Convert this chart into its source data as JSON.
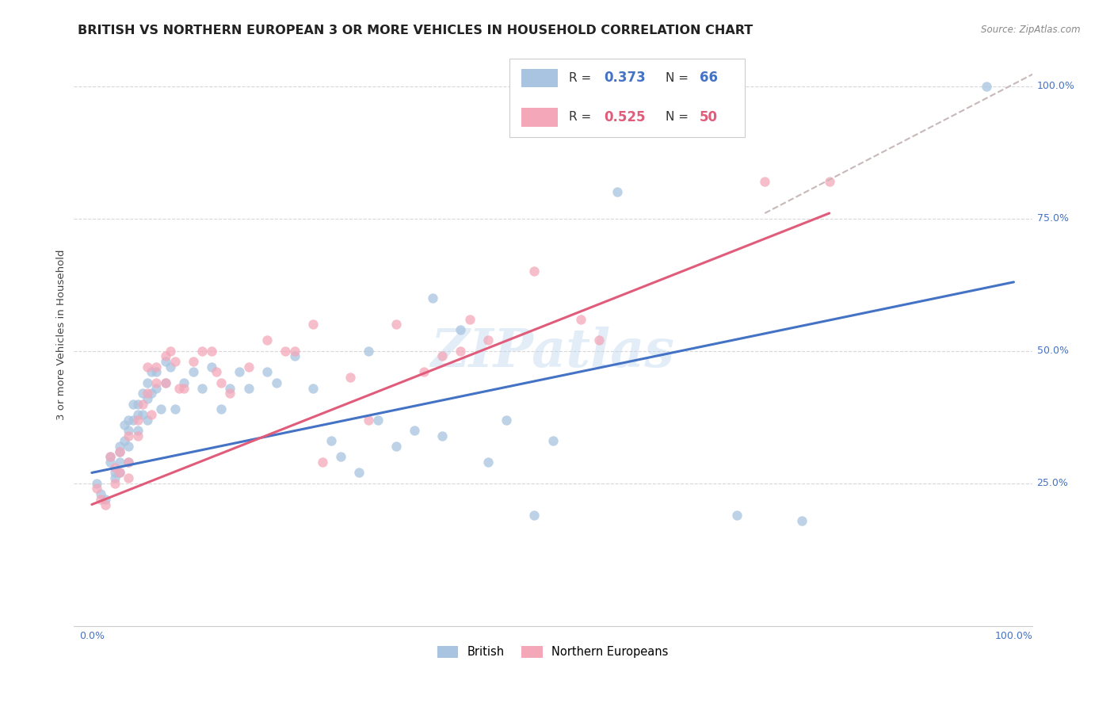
{
  "title": "BRITISH VS NORTHERN EUROPEAN 3 OR MORE VEHICLES IN HOUSEHOLD CORRELATION CHART",
  "source": "Source: ZipAtlas.com",
  "ylabel": "3 or more Vehicles in Household",
  "xlim": [
    -0.02,
    1.02
  ],
  "ylim": [
    -0.02,
    1.08
  ],
  "british_R": 0.373,
  "british_N": 66,
  "northern_R": 0.525,
  "northern_N": 50,
  "british_color": "#a8c4e0",
  "northern_color": "#f4a7b9",
  "british_line_color": "#4472c4",
  "northern_line_color": "#e05c7a",
  "dashed_line_color": "#c8b8b8",
  "watermark_text": "ZIPatlas",
  "british_scatter_x": [
    0.005,
    0.01,
    0.015,
    0.02,
    0.02,
    0.025,
    0.025,
    0.03,
    0.03,
    0.03,
    0.03,
    0.035,
    0.035,
    0.04,
    0.04,
    0.04,
    0.04,
    0.045,
    0.045,
    0.05,
    0.05,
    0.05,
    0.055,
    0.055,
    0.06,
    0.06,
    0.06,
    0.065,
    0.065,
    0.07,
    0.07,
    0.075,
    0.08,
    0.08,
    0.085,
    0.09,
    0.1,
    0.11,
    0.12,
    0.13,
    0.14,
    0.15,
    0.16,
    0.17,
    0.19,
    0.2,
    0.22,
    0.24,
    0.26,
    0.27,
    0.29,
    0.3,
    0.31,
    0.33,
    0.35,
    0.37,
    0.38,
    0.4,
    0.43,
    0.45,
    0.48,
    0.5,
    0.57,
    0.7,
    0.77,
    0.97
  ],
  "british_scatter_y": [
    0.25,
    0.23,
    0.22,
    0.3,
    0.29,
    0.27,
    0.26,
    0.32,
    0.31,
    0.29,
    0.27,
    0.36,
    0.33,
    0.37,
    0.35,
    0.32,
    0.29,
    0.4,
    0.37,
    0.4,
    0.38,
    0.35,
    0.42,
    0.38,
    0.44,
    0.41,
    0.37,
    0.46,
    0.42,
    0.46,
    0.43,
    0.39,
    0.48,
    0.44,
    0.47,
    0.39,
    0.44,
    0.46,
    0.43,
    0.47,
    0.39,
    0.43,
    0.46,
    0.43,
    0.46,
    0.44,
    0.49,
    0.43,
    0.33,
    0.3,
    0.27,
    0.5,
    0.37,
    0.32,
    0.35,
    0.6,
    0.34,
    0.54,
    0.29,
    0.37,
    0.19,
    0.33,
    0.8,
    0.19,
    0.18,
    1.0
  ],
  "northern_scatter_x": [
    0.005,
    0.01,
    0.015,
    0.02,
    0.025,
    0.025,
    0.03,
    0.03,
    0.04,
    0.04,
    0.04,
    0.05,
    0.05,
    0.055,
    0.06,
    0.06,
    0.065,
    0.07,
    0.07,
    0.08,
    0.08,
    0.085,
    0.09,
    0.095,
    0.1,
    0.11,
    0.12,
    0.13,
    0.135,
    0.14,
    0.15,
    0.17,
    0.19,
    0.21,
    0.22,
    0.24,
    0.25,
    0.28,
    0.3,
    0.33,
    0.36,
    0.38,
    0.4,
    0.41,
    0.43,
    0.48,
    0.53,
    0.55,
    0.73,
    0.8
  ],
  "northern_scatter_y": [
    0.24,
    0.22,
    0.21,
    0.3,
    0.28,
    0.25,
    0.31,
    0.27,
    0.34,
    0.29,
    0.26,
    0.37,
    0.34,
    0.4,
    0.47,
    0.42,
    0.38,
    0.47,
    0.44,
    0.49,
    0.44,
    0.5,
    0.48,
    0.43,
    0.43,
    0.48,
    0.5,
    0.5,
    0.46,
    0.44,
    0.42,
    0.47,
    0.52,
    0.5,
    0.5,
    0.55,
    0.29,
    0.45,
    0.37,
    0.55,
    0.46,
    0.49,
    0.5,
    0.56,
    0.52,
    0.65,
    0.56,
    0.52,
    0.82,
    0.82
  ],
  "british_line_x": [
    0.0,
    1.0
  ],
  "british_line_y": [
    0.27,
    0.63
  ],
  "northern_line_x": [
    0.0,
    0.8
  ],
  "northern_line_y": [
    0.21,
    0.76
  ],
  "dashed_line_x": [
    0.73,
    1.04
  ],
  "dashed_line_y": [
    0.76,
    1.04
  ],
  "background_color": "#ffffff",
  "grid_color": "#d8d8d8",
  "title_fontsize": 11.5,
  "axis_label_fontsize": 9.5,
  "tick_fontsize": 9,
  "scatter_size": 80
}
